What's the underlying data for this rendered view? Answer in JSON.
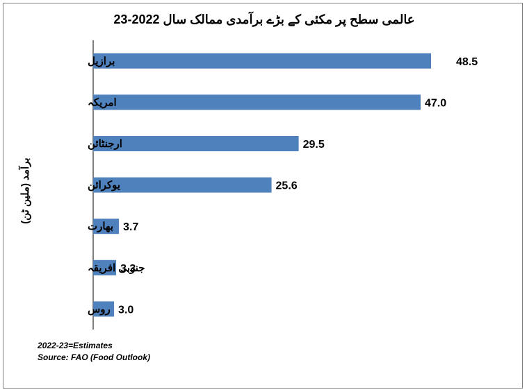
{
  "chart_data": {
    "type": "bar",
    "orientation": "horizontal",
    "title": "عالمی سطح پر مکئی کے بڑے برآمدی ممالک سال  2022-23",
    "ylabel": "برآمد (ملین ٹن)",
    "xlabel": "",
    "categories": [
      "برازیل",
      "امریکہ",
      "ارجنٹائن",
      "یوکرائن",
      "بھارت",
      "جنوبی افریقہ",
      "روس"
    ],
    "values": [
      48.5,
      47.0,
      29.5,
      25.6,
      3.7,
      3.3,
      3.0
    ],
    "value_labels": [
      "48.5",
      "47.0",
      "29.5",
      "25.6",
      "3.7",
      "3.3",
      "3.0"
    ],
    "xlim": [
      0,
      50
    ],
    "grid": false,
    "legend": "none",
    "bar_color": "#4f81bd"
  },
  "notes": {
    "estimates": "2022-23=Estimates",
    "source": "Source: FAO (Food Outlook)"
  }
}
